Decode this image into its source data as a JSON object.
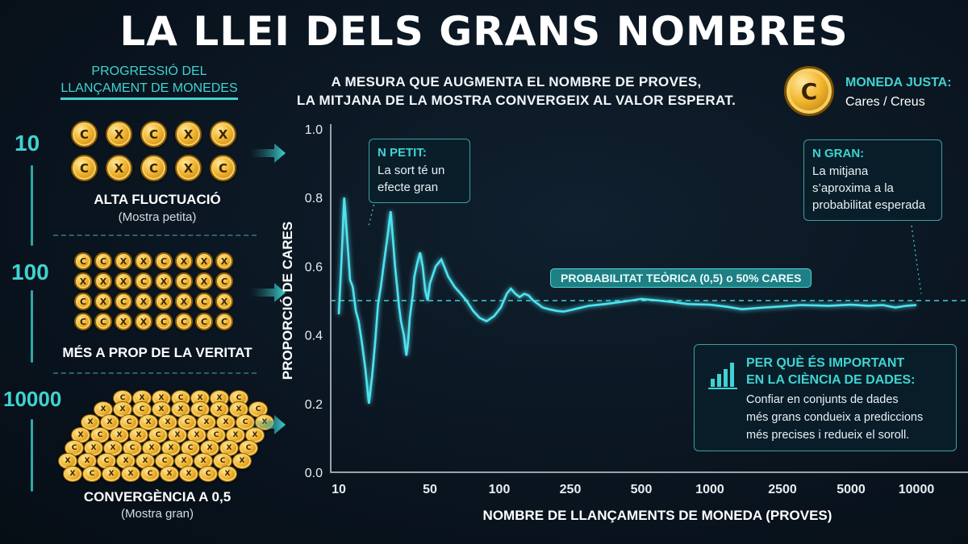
{
  "title": "LA LLEI DELS GRANS NOMBRES",
  "subtitle_line1": "A MESURA QUE AUGMENTA EL NOMBRE DE PROVES,",
  "subtitle_line2": "LA MITJANA DE LA MOSTRA CONVERGEIX AL VALOR ESPERAT.",
  "fair_coin": {
    "symbol": "C",
    "title": "MONEDA JUSTA:",
    "value": "Cares / Creus"
  },
  "progression": {
    "heading_line1": "PROGRESSIÓ DEL",
    "heading_line2": "LLANÇAMENT DE MONEDES",
    "coin_heads": "C",
    "coin_tails": "X",
    "stages": [
      {
        "count": "10",
        "label": "ALTA FLUCTUACIÓ",
        "sub": "(Mostra petita)",
        "rows": [
          [
            "C",
            "X",
            "C",
            "X",
            "X"
          ],
          [
            "C",
            "X",
            "C",
            "X",
            "C"
          ]
        ]
      },
      {
        "count": "100",
        "label": "MÉS A PROP DE LA VERITAT",
        "sub": "",
        "rows": [
          [
            "C",
            "C",
            "X",
            "X",
            "C",
            "X",
            "X",
            "X"
          ],
          [
            "X",
            "X",
            "X",
            "C",
            "X",
            "C",
            "X",
            "C"
          ],
          [
            "C",
            "X",
            "C",
            "X",
            "X",
            "X",
            "C",
            "X"
          ],
          [
            "C",
            "C",
            "X",
            "X",
            "C",
            "C",
            "C",
            "C"
          ]
        ]
      },
      {
        "count": "10000",
        "label": "CONVERGÈNCIA A 0,5",
        "sub": "(Mostra gran)"
      }
    ]
  },
  "callout_small": {
    "title": "N PETIT:",
    "line1": "La sort té un",
    "line2": "efecte gran"
  },
  "callout_large": {
    "title": "N GRAN:",
    "line1": "La mitjana",
    "line2": "s’aproxima a la",
    "line3": "probabilitat esperada"
  },
  "theoretical_label": "PROBABILITAT TEÒRICA (0,5) o 50% CARES",
  "why_box": {
    "title_line1": "PER QUÈ ÉS IMPORTANT",
    "title_line2": "EN LA CIÈNCIA DE DADES:",
    "line1": "Confiar en conjunts de dades",
    "line2": "més grans condueix a prediccions",
    "line3": "més precises i redueix el soroll."
  },
  "colors": {
    "accent": "#3fd3d1",
    "line": "#4fe3f0",
    "gold": "#f0b431",
    "background": "#0a1520"
  },
  "chart_data": {
    "type": "line",
    "xlabel": "NOMBRE DE LLANÇAMENTS DE MONEDA (PROVES)",
    "ylabel": "PROPORCIÓ DE CARES",
    "ylim": [
      0,
      1
    ],
    "yticks": [
      "0.0",
      "0.2",
      "0.4",
      "0.6",
      "0.8",
      "1.0"
    ],
    "x_scale": "categorical-log",
    "xticks": [
      "10",
      "50",
      "100",
      "250",
      "500",
      "1000",
      "2500",
      "5000",
      "10000"
    ],
    "reference_line": 0.5,
    "grid": false,
    "series": [
      {
        "values": [
          [
            10,
            0.46
          ],
          [
            10.5,
            0.62
          ],
          [
            11,
            0.8
          ],
          [
            11.6,
            0.68
          ],
          [
            12.2,
            0.56
          ],
          [
            12.8,
            0.54
          ],
          [
            13.5,
            0.47
          ],
          [
            14.2,
            0.44
          ],
          [
            15,
            0.38
          ],
          [
            16,
            0.3
          ],
          [
            17,
            0.2
          ],
          [
            18,
            0.28
          ],
          [
            19,
            0.38
          ],
          [
            20,
            0.49
          ],
          [
            21,
            0.54
          ],
          [
            22,
            0.6
          ],
          [
            23.5,
            0.68
          ],
          [
            25,
            0.76
          ],
          [
            26,
            0.68
          ],
          [
            27,
            0.6
          ],
          [
            28,
            0.54
          ],
          [
            29,
            0.48
          ],
          [
            30,
            0.44
          ],
          [
            31.5,
            0.4
          ],
          [
            33,
            0.34
          ],
          [
            34,
            0.38
          ],
          [
            35,
            0.45
          ],
          [
            37,
            0.52
          ],
          [
            38,
            0.57
          ],
          [
            40,
            0.61
          ],
          [
            42,
            0.64
          ],
          [
            44,
            0.6
          ],
          [
            46,
            0.53
          ],
          [
            48,
            0.5
          ],
          [
            50,
            0.55
          ],
          [
            53,
            0.6
          ],
          [
            56,
            0.62
          ],
          [
            60,
            0.57
          ],
          [
            64,
            0.54
          ],
          [
            68,
            0.52
          ],
          [
            72,
            0.5
          ],
          [
            77,
            0.47
          ],
          [
            82,
            0.45
          ],
          [
            88,
            0.44
          ],
          [
            95,
            0.455
          ],
          [
            102,
            0.48
          ],
          [
            110,
            0.52
          ],
          [
            116,
            0.535
          ],
          [
            123,
            0.52
          ],
          [
            130,
            0.51
          ],
          [
            138,
            0.52
          ],
          [
            146,
            0.515
          ],
          [
            155,
            0.5
          ],
          [
            165,
            0.49
          ],
          [
            175,
            0.48
          ],
          [
            190,
            0.475
          ],
          [
            210,
            0.47
          ],
          [
            230,
            0.468
          ],
          [
            260,
            0.475
          ],
          [
            300,
            0.485
          ],
          [
            350,
            0.49
          ],
          [
            400,
            0.495
          ],
          [
            450,
            0.5
          ],
          [
            500,
            0.505
          ],
          [
            600,
            0.5
          ],
          [
            700,
            0.495
          ],
          [
            800,
            0.49
          ],
          [
            1000,
            0.488
          ],
          [
            1250,
            0.482
          ],
          [
            1500,
            0.475
          ],
          [
            2000,
            0.48
          ],
          [
            2500,
            0.483
          ],
          [
            3000,
            0.487
          ],
          [
            4000,
            0.485
          ],
          [
            5000,
            0.488
          ],
          [
            6000,
            0.485
          ],
          [
            7000,
            0.487
          ],
          [
            8000,
            0.48
          ],
          [
            9000,
            0.485
          ],
          [
            10000,
            0.487
          ]
        ]
      }
    ]
  }
}
